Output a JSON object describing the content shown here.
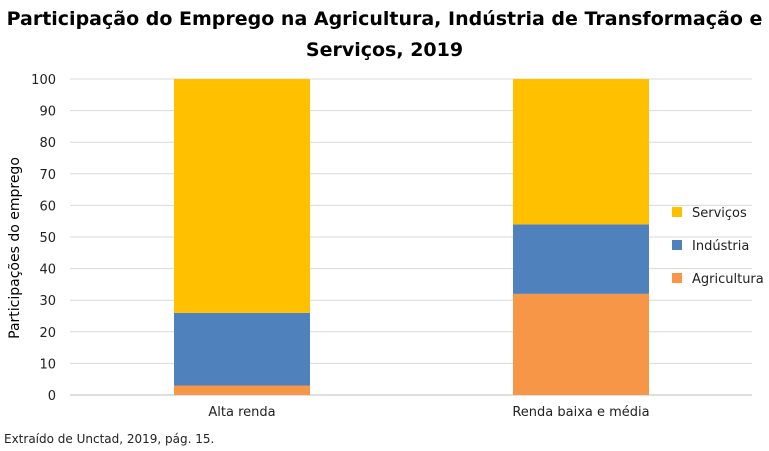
{
  "chart_data": {
    "type": "bar",
    "stacked": true,
    "title_line1": "Participação do Emprego na Agricultura, Indústria de Transformação e",
    "title_line2": "Serviços, 2019",
    "xlabel": "",
    "ylabel": "Participações do emprego",
    "ylim": [
      0,
      100
    ],
    "yticks": [
      0,
      10,
      20,
      30,
      40,
      50,
      60,
      70,
      80,
      90,
      100
    ],
    "grid": true,
    "legend_position": "right",
    "categories": [
      "Alta renda",
      "Renda baixa e média"
    ],
    "series": [
      {
        "name": "Agricultura",
        "color": "#F79646",
        "values": [
          3,
          32
        ]
      },
      {
        "name": "Indústria",
        "color": "#4F81BD",
        "values": [
          23,
          22
        ]
      },
      {
        "name": "Serviços",
        "color": "#FFC000",
        "values": [
          74,
          46
        ]
      }
    ],
    "legend_order": [
      "Serviços",
      "Indústria",
      "Agricultura"
    ]
  },
  "source_note": "Extraído de Unctad, 2019, pág. 15."
}
